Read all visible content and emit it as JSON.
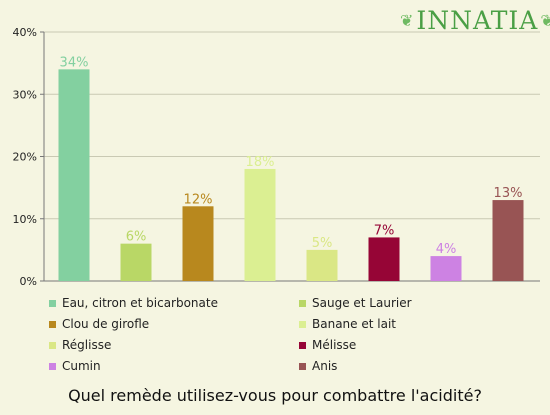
{
  "logo": {
    "text": "INNATIA",
    "icon": "leaf-icon"
  },
  "chart_data": {
    "type": "bar",
    "categories": [
      "Eau, citron et bicarbonate",
      "Sauge et Laurier",
      "Clou de girofle",
      "Banane et lait",
      "Réglisse",
      "Mélisse",
      "Cumin",
      "Anis"
    ],
    "values": [
      34,
      6,
      12,
      18,
      5,
      7,
      4,
      13
    ],
    "value_labels": [
      "34%",
      "6%",
      "12%",
      "18%",
      "5%",
      "7%",
      "4%",
      "13%"
    ],
    "colors": [
      "#83d0a0",
      "#b9d766",
      "#b8881e",
      "#dbef92",
      "#dae785",
      "#960536",
      "#cd82e3",
      "#985454"
    ],
    "ylim": [
      0,
      40
    ],
    "yticks": [
      0,
      10,
      20,
      30,
      40
    ],
    "ytick_labels": [
      "0%",
      "10%",
      "20%",
      "30%",
      "40%"
    ],
    "grid": true,
    "legend_position": "bottom",
    "title": "Quel remède utilisez-vous pour combattre l'acidité?"
  }
}
